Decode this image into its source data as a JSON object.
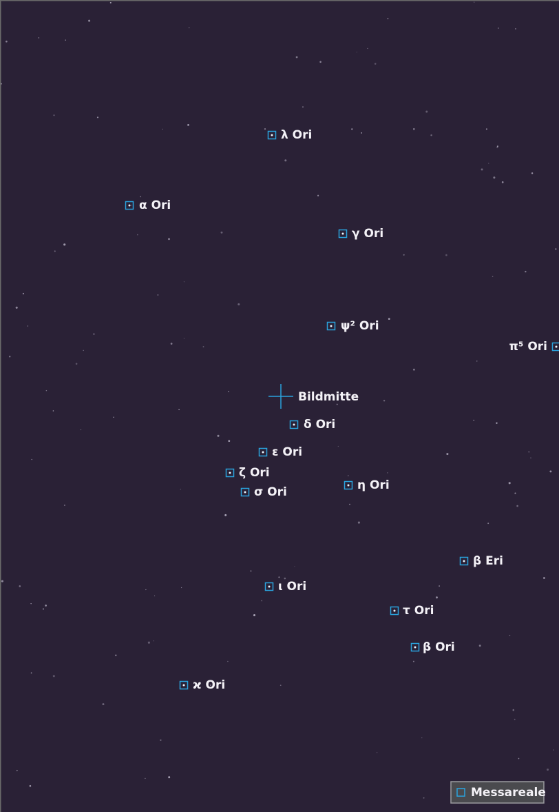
{
  "labels": [
    "λ Ori",
    "α Ori",
    "γ Ori",
    "ψ² Ori",
    "π⁵ Ori",
    "δ Ori",
    "ε Ori",
    "ζ Ori",
    "σ Ori",
    "η Ori",
    "β Eri",
    "ι Ori",
    "τ Ori",
    "β Ori",
    "ϰ Ori"
  ],
  "center_label": "Bildmitte",
  "legend": "Messareale"
}
